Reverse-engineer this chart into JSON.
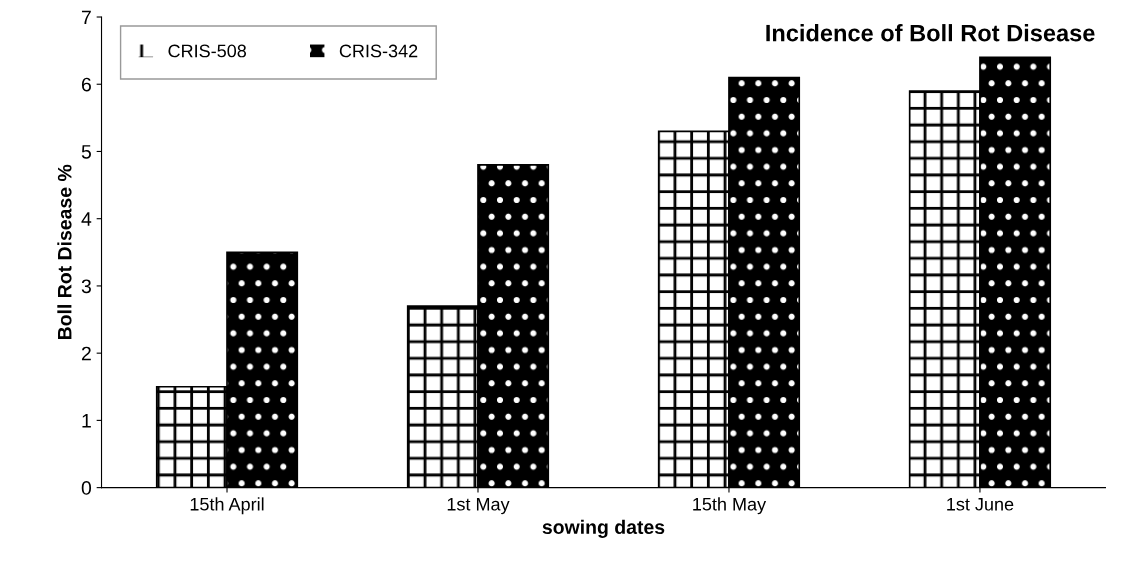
{
  "chart_data": {
    "type": "bar",
    "title": "Incidence of Boll Rot Disease",
    "xlabel": "sowing dates",
    "ylabel": "Boll Rot Disease %",
    "categories": [
      "15th April",
      "1st May",
      "15th May",
      "1st June"
    ],
    "series": [
      {
        "name": "CRIS-508",
        "color": "#ffffff",
        "values": [
          1.5,
          2.7,
          5.3,
          5.9
        ]
      },
      {
        "name": "CRIS-342",
        "color": "#000000",
        "values": [
          3.5,
          4.8,
          6.1,
          6.4
        ]
      }
    ],
    "ylim": [
      0,
      7
    ],
    "yticks": [
      0,
      1,
      2,
      3,
      4,
      5,
      6,
      7
    ],
    "grid": false,
    "legend": "top left"
  }
}
